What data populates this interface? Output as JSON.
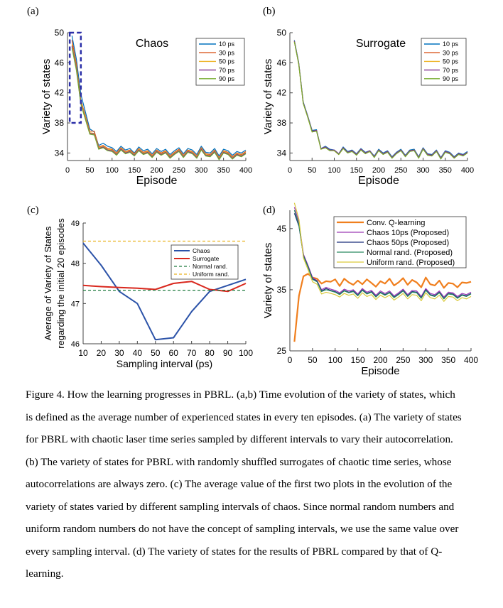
{
  "colors": {
    "c10": "#0072BD",
    "c30": "#D95319",
    "c50": "#EDB120",
    "c70": "#7E2F8E",
    "c90": "#77AC30",
    "blue": "#2B52A8",
    "red": "#D9281E",
    "green": "#1F7A3D",
    "yellow": "#E9B21E",
    "orange": "#F07F1E",
    "purple": "#9C3AB5",
    "navy": "#1B2E7A",
    "teal": "#2A8A60",
    "gold": "#D9C93A"
  },
  "chart_data": [
    {
      "panel": "(a)",
      "type": "line",
      "title": "Chaos",
      "xlabel": "Episode",
      "ylabel": "Variety of states",
      "xlim": [
        0,
        400
      ],
      "ylim": [
        33,
        50
      ],
      "xticks": [
        "0",
        "50",
        "100",
        "150",
        "200",
        "250",
        "300",
        "350",
        "400"
      ],
      "yticks": [
        "34",
        "38",
        "42",
        "46",
        "50"
      ],
      "highlight_box": {
        "x": [
          5,
          30
        ],
        "y": [
          38,
          50
        ]
      },
      "x": [
        10,
        20,
        30,
        40,
        50,
        60,
        70,
        80,
        90,
        100,
        110,
        120,
        130,
        140,
        150,
        160,
        170,
        180,
        190,
        200,
        210,
        220,
        230,
        240,
        250,
        260,
        270,
        280,
        290,
        300,
        310,
        320,
        330,
        340,
        350,
        360,
        370,
        380,
        390,
        400
      ],
      "series": [
        {
          "name": "10 ps",
          "values": [
            49.6,
            46.5,
            41.8,
            39.5,
            37.2,
            36.8,
            35.0,
            35.3,
            34.9,
            34.7,
            34.2,
            34.9,
            34.4,
            34.6,
            34.0,
            34.8,
            34.3,
            34.5,
            33.9,
            34.6,
            34.2,
            34.5,
            33.8,
            34.3,
            34.7,
            33.9,
            34.6,
            34.4,
            33.8,
            34.9,
            34.1,
            34.0,
            34.6,
            33.6,
            34.5,
            34.3,
            33.7,
            34.2,
            34.0,
            34.4
          ]
        },
        {
          "name": "30 ps",
          "values": [
            49.0,
            45.8,
            41.0,
            39.0,
            36.9,
            36.9,
            34.8,
            35.0,
            34.6,
            34.5,
            34.0,
            34.7,
            34.2,
            34.4,
            33.9,
            34.6,
            34.1,
            34.3,
            33.7,
            34.4,
            34.0,
            34.3,
            33.6,
            34.1,
            34.5,
            33.7,
            34.4,
            34.2,
            33.6,
            34.7,
            33.9,
            33.8,
            34.4,
            33.4,
            34.3,
            34.1,
            33.5,
            34.0,
            33.8,
            34.2
          ]
        },
        {
          "name": "50 ps",
          "values": [
            48.4,
            45.4,
            40.8,
            38.8,
            36.7,
            36.6,
            34.7,
            34.9,
            34.5,
            34.4,
            33.9,
            34.6,
            34.1,
            34.3,
            33.8,
            34.5,
            34.0,
            34.2,
            33.6,
            34.3,
            33.9,
            34.2,
            33.5,
            34.0,
            34.4,
            33.6,
            34.3,
            34.1,
            33.5,
            34.6,
            33.8,
            33.7,
            34.3,
            33.3,
            34.2,
            34.0,
            33.4,
            33.9,
            33.7,
            34.1
          ]
        },
        {
          "name": "70 ps",
          "values": [
            48.2,
            45.2,
            40.6,
            38.6,
            36.6,
            36.5,
            34.6,
            34.8,
            34.4,
            34.3,
            33.8,
            34.5,
            34.0,
            34.2,
            33.7,
            34.4,
            33.9,
            34.1,
            33.5,
            34.2,
            33.8,
            34.1,
            33.4,
            33.9,
            34.3,
            33.5,
            34.2,
            34.0,
            33.4,
            34.5,
            33.7,
            33.6,
            34.2,
            33.2,
            34.1,
            33.9,
            33.3,
            33.8,
            33.6,
            34.0
          ]
        },
        {
          "name": "90 ps",
          "values": [
            48.0,
            45.0,
            40.5,
            38.5,
            36.5,
            36.4,
            34.5,
            34.7,
            34.3,
            34.2,
            33.7,
            34.4,
            33.9,
            34.1,
            33.6,
            34.3,
            33.8,
            34.0,
            33.4,
            34.1,
            33.7,
            34.0,
            33.3,
            33.8,
            34.2,
            33.4,
            34.1,
            33.9,
            33.3,
            34.4,
            33.6,
            33.5,
            34.1,
            33.1,
            34.0,
            33.8,
            33.2,
            33.7,
            33.5,
            33.9
          ]
        }
      ]
    },
    {
      "panel": "(b)",
      "type": "line",
      "title": "Surrogate",
      "xlabel": "Episode",
      "ylabel": "Variety of states",
      "xlim": [
        0,
        400
      ],
      "ylim": [
        33,
        50
      ],
      "xticks": [
        "0",
        "50",
        "100",
        "150",
        "200",
        "250",
        "300",
        "350",
        "400"
      ],
      "yticks": [
        "34",
        "38",
        "42",
        "46",
        "50"
      ],
      "x": [
        10,
        20,
        30,
        40,
        50,
        60,
        70,
        80,
        90,
        100,
        110,
        120,
        130,
        140,
        150,
        160,
        170,
        180,
        190,
        200,
        210,
        220,
        230,
        240,
        250,
        260,
        270,
        280,
        290,
        300,
        310,
        320,
        330,
        340,
        350,
        360,
        370,
        380,
        390,
        400
      ],
      "series": [
        {
          "name": "10 ps",
          "values": [
            49.0,
            46.0,
            40.8,
            39.0,
            37.0,
            37.1,
            34.6,
            34.9,
            34.5,
            34.4,
            33.9,
            34.8,
            34.2,
            34.4,
            33.9,
            34.6,
            34.1,
            34.3,
            33.6,
            34.5,
            34.0,
            34.3,
            33.5,
            34.1,
            34.5,
            33.7,
            34.4,
            34.5,
            33.5,
            34.7,
            33.9,
            33.8,
            34.4,
            33.4,
            34.3,
            34.1,
            33.5,
            34.0,
            33.8,
            34.2
          ]
        },
        {
          "name": "30 ps",
          "values": [
            48.8,
            45.9,
            40.7,
            38.9,
            36.9,
            37.0,
            34.5,
            34.8,
            34.4,
            34.3,
            33.8,
            34.7,
            34.1,
            34.3,
            33.8,
            34.5,
            34.0,
            34.2,
            33.5,
            34.4,
            33.9,
            34.2,
            33.4,
            34.0,
            34.4,
            33.6,
            34.3,
            34.4,
            33.4,
            34.6,
            33.8,
            33.7,
            34.3,
            33.3,
            34.2,
            34.0,
            33.4,
            33.9,
            33.7,
            34.1
          ]
        },
        {
          "name": "50 ps",
          "values": [
            48.9,
            45.8,
            40.6,
            38.8,
            36.8,
            37.0,
            34.5,
            34.7,
            34.4,
            34.3,
            33.8,
            34.6,
            34.1,
            34.3,
            33.8,
            34.5,
            34.0,
            34.2,
            33.5,
            34.4,
            33.9,
            34.2,
            33.4,
            34.0,
            34.4,
            33.6,
            34.3,
            34.4,
            33.4,
            34.6,
            33.8,
            33.7,
            34.3,
            33.3,
            34.2,
            34.0,
            33.4,
            33.9,
            33.7,
            34.1
          ]
        },
        {
          "name": "70 ps",
          "values": [
            48.9,
            45.9,
            40.7,
            38.9,
            36.9,
            37.0,
            34.6,
            34.8,
            34.4,
            34.4,
            33.9,
            34.7,
            34.1,
            34.3,
            33.8,
            34.5,
            34.0,
            34.3,
            33.5,
            34.4,
            33.9,
            34.2,
            33.4,
            34.0,
            34.4,
            33.6,
            34.3,
            34.4,
            33.4,
            34.6,
            33.8,
            33.7,
            34.3,
            33.3,
            34.2,
            34.0,
            33.4,
            33.9,
            33.7,
            34.1
          ]
        },
        {
          "name": "90 ps",
          "values": [
            48.8,
            45.8,
            40.6,
            38.8,
            36.8,
            36.9,
            34.5,
            34.7,
            34.3,
            34.3,
            33.8,
            34.6,
            34.0,
            34.2,
            33.7,
            34.4,
            33.9,
            34.2,
            33.4,
            34.3,
            33.8,
            34.1,
            33.3,
            33.9,
            34.3,
            33.5,
            34.2,
            34.3,
            33.3,
            34.5,
            33.7,
            33.6,
            34.2,
            33.2,
            34.1,
            33.9,
            33.3,
            33.8,
            33.6,
            34.0
          ]
        }
      ]
    },
    {
      "panel": "(c)",
      "type": "line",
      "xlabel": "Sampling interval (ps)",
      "ylabel": "Average of Variety of States",
      "ylabel2": "regarding the initial 20 episodes",
      "xlim": [
        10,
        100
      ],
      "ylim": [
        46,
        49
      ],
      "xticks": [
        "10",
        "20",
        "30",
        "40",
        "50",
        "60",
        "70",
        "80",
        "90",
        "100"
      ],
      "yticks": [
        "46",
        "47",
        "48",
        "49"
      ],
      "x": [
        10,
        20,
        30,
        40,
        50,
        60,
        70,
        80,
        90,
        100
      ],
      "series": [
        {
          "name": "Chaos",
          "values": [
            48.5,
            47.95,
            47.3,
            47.0,
            46.1,
            46.15,
            46.8,
            47.3,
            47.45,
            47.6
          ]
        },
        {
          "name": "Surrogate",
          "values": [
            47.45,
            47.42,
            47.4,
            47.38,
            47.35,
            47.5,
            47.55,
            47.35,
            47.3,
            47.5
          ]
        },
        {
          "name": "Normal rand.",
          "values": [
            47.33,
            47.33,
            47.33,
            47.33,
            47.33,
            47.33,
            47.33,
            47.33,
            47.33,
            47.33
          ]
        },
        {
          "name": "Uniform rand.",
          "values": [
            48.55,
            48.55,
            48.55,
            48.55,
            48.55,
            48.55,
            48.55,
            48.55,
            48.55,
            48.55
          ]
        }
      ]
    },
    {
      "panel": "(d)",
      "type": "line",
      "xlabel": "Episode",
      "ylabel": "Variety of states",
      "xlim": [
        0,
        400
      ],
      "ylim": [
        25,
        48
      ],
      "xticks": [
        "0",
        "50",
        "100",
        "150",
        "200",
        "250",
        "300",
        "350",
        "400"
      ],
      "yticks": [
        "25",
        "35",
        "45"
      ],
      "x": [
        10,
        20,
        30,
        40,
        50,
        60,
        70,
        80,
        90,
        100,
        110,
        120,
        130,
        140,
        150,
        160,
        170,
        180,
        190,
        200,
        210,
        220,
        230,
        240,
        250,
        260,
        270,
        280,
        290,
        300,
        310,
        320,
        330,
        340,
        350,
        360,
        370,
        380,
        390,
        400
      ],
      "series": [
        {
          "name": "Conv. Q-learning",
          "values": [
            26.5,
            34.0,
            37.2,
            37.6,
            37.0,
            36.8,
            36.0,
            36.4,
            36.3,
            36.7,
            35.6,
            36.8,
            36.2,
            35.8,
            36.5,
            35.9,
            36.7,
            36.1,
            35.5,
            36.4,
            36.0,
            36.8,
            35.7,
            36.2,
            36.9,
            35.8,
            36.6,
            36.2,
            35.4,
            37.0,
            35.9,
            35.7,
            36.5,
            35.3,
            36.1,
            36.0,
            35.4,
            36.2,
            36.1,
            36.3
          ]
        },
        {
          "name": "Chaos 10ps (Proposed)",
          "values": [
            48.5,
            46.0,
            40.8,
            39.0,
            37.0,
            36.5,
            35.0,
            35.4,
            35.1,
            34.9,
            34.5,
            35.1,
            34.8,
            35.0,
            34.3,
            35.2,
            34.6,
            34.9,
            34.1,
            34.8,
            34.4,
            34.8,
            34.0,
            34.5,
            35.1,
            34.2,
            34.9,
            34.8,
            33.9,
            35.2,
            34.4,
            34.2,
            34.8,
            33.8,
            34.6,
            34.5,
            33.9,
            34.4,
            34.2,
            34.6
          ]
        },
        {
          "name": "Chaos 50ps (Proposed)",
          "values": [
            47.5,
            45.4,
            40.6,
            38.8,
            36.8,
            36.4,
            34.8,
            35.2,
            34.9,
            34.7,
            34.3,
            34.9,
            34.6,
            34.8,
            34.1,
            35.0,
            34.4,
            34.7,
            33.9,
            34.6,
            34.2,
            34.6,
            33.8,
            34.3,
            34.9,
            34.0,
            34.7,
            34.6,
            33.7,
            35.0,
            34.2,
            34.0,
            34.6,
            33.6,
            34.4,
            34.3,
            33.7,
            34.2,
            34.0,
            34.4
          ]
        },
        {
          "name": "Normal rand. (Proposed)",
          "values": [
            48.0,
            45.6,
            40.5,
            38.7,
            36.7,
            36.3,
            34.7,
            35.0,
            34.8,
            34.6,
            34.2,
            34.8,
            34.5,
            34.7,
            34.0,
            34.9,
            34.3,
            34.6,
            33.8,
            34.5,
            34.1,
            34.5,
            33.7,
            34.2,
            34.8,
            33.9,
            34.6,
            34.5,
            33.6,
            34.9,
            34.1,
            33.9,
            34.5,
            33.5,
            34.3,
            34.2,
            33.6,
            34.1,
            33.9,
            34.3
          ]
        },
        {
          "name": "Uniform rand. (Proposed)",
          "values": [
            49.2,
            46.5,
            40.2,
            38.3,
            36.3,
            35.9,
            34.3,
            34.6,
            34.4,
            34.2,
            33.8,
            34.4,
            34.1,
            34.3,
            33.6,
            34.5,
            33.9,
            34.2,
            33.4,
            34.1,
            33.7,
            34.1,
            33.3,
            33.8,
            34.4,
            33.5,
            34.2,
            34.1,
            33.2,
            34.5,
            33.7,
            33.5,
            34.1,
            33.1,
            33.9,
            33.8,
            33.2,
            33.7,
            33.5,
            33.9
          ]
        }
      ]
    }
  ],
  "caption": {
    "lines": [
      "Figure 4. How the learning progresses in PBRL. (a,b) Time evolution of the variety of states, which",
      "is defined as the average number of experienced states in every ten episodes. (a) The variety of states",
      "for PBRL with chaotic laser time series sampled by different intervals to vary their autocorrelation.",
      "(b) The variety of states for PBRL with randomly shuffled surrogates of chaotic time series, whose",
      "autocorrelations are always zero. (c) The average value of the first two plots in the evolution of the",
      "variety of states varied by different sampling intervals of chaos. Since normal random numbers and",
      "uniform random numbers do not have the concept of sampling intervals, we use the same value over",
      "every sampling interval. (d) The variety of states for the results of PBRL compared by that of Q-",
      "learning."
    ]
  }
}
